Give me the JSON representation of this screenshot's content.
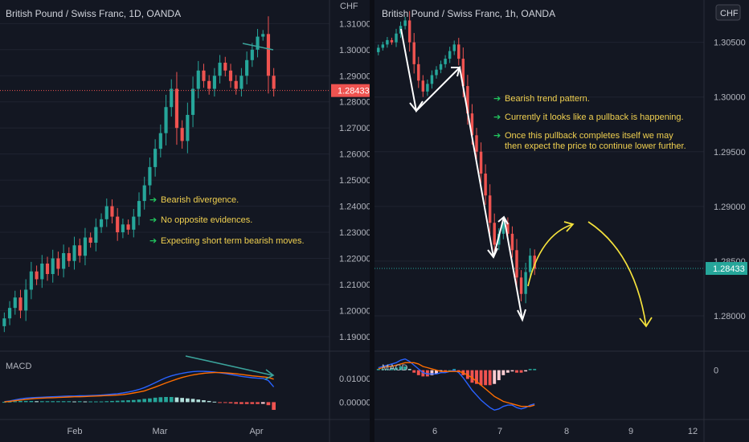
{
  "colors": {
    "background": "#131722",
    "up": "#26a69a",
    "down": "#ef5350",
    "price_line": "#ef5350",
    "price_tag_left": "#ef5350",
    "price_tag_right": "#26a69a",
    "macd_line": "#2962ff",
    "signal_line": "#ff6d00",
    "annotation_text": "#f0d050",
    "arrow_icon": "#22c55e",
    "projection": "#f5e23c"
  },
  "chart_data": [
    {
      "type": "candlestick",
      "title": "British Pound / Swiss Franc, 1D, OANDA",
      "currency": "CHF",
      "y_ticks": [
        "1.31000",
        "1.30000",
        "1.29000",
        "1.28000",
        "1.27000",
        "1.26000",
        "1.25000",
        "1.24000",
        "1.23000",
        "1.22000",
        "1.21000",
        "1.20000",
        "1.19000"
      ],
      "ylim": [
        1.1875,
        1.3175
      ],
      "x_ticks": [
        "Feb",
        "Mar",
        "Apr"
      ],
      "current_price": "1.28433",
      "current_value": 1.28433,
      "closes": [
        1.197,
        1.201,
        1.205,
        1.2,
        1.208,
        1.215,
        1.212,
        1.218,
        1.214,
        1.22,
        1.216,
        1.222,
        1.219,
        1.225,
        1.221,
        1.228,
        1.226,
        1.232,
        1.235,
        1.24,
        1.236,
        1.23,
        1.233,
        1.231,
        1.236,
        1.242,
        1.248,
        1.255,
        1.262,
        1.268,
        1.278,
        1.285,
        1.27,
        1.265,
        1.275,
        1.285,
        1.292,
        1.288,
        1.285,
        1.29,
        1.295,
        1.292,
        1.288,
        1.285,
        1.29,
        1.296,
        1.3,
        1.305,
        1.306,
        1.29,
        1.285
      ],
      "annotations": [
        "Bearish divergence.",
        "No opposite evidences.",
        "Expecting short term bearish moves."
      ],
      "macd": {
        "label": "MACD",
        "y_ticks": [
          "0.01000",
          "0.00000"
        ],
        "ylim": [
          -0.005,
          0.02
        ],
        "macd_line": [
          0.0002,
          0.0005,
          0.001,
          0.0014,
          0.0017,
          0.0019,
          0.002,
          0.0021,
          0.0022,
          0.0023,
          0.0024,
          0.0025,
          0.0026,
          0.0026,
          0.0027,
          0.0027,
          0.0028,
          0.0029,
          0.003,
          0.0032,
          0.0034,
          0.0036,
          0.0039,
          0.0043,
          0.0048,
          0.0054,
          0.0062,
          0.0072,
          0.0083,
          0.0094,
          0.0104,
          0.0112,
          0.0118,
          0.0123,
          0.0127,
          0.013,
          0.0131,
          0.0131,
          0.013,
          0.0128,
          0.0125,
          0.0122,
          0.0118,
          0.0114,
          0.011,
          0.0107,
          0.0104,
          0.0102,
          0.0101,
          0.0092,
          0.0065
        ],
        "signal_line": [
          0.0001,
          0.0003,
          0.0006,
          0.0009,
          0.0012,
          0.0014,
          0.0016,
          0.0017,
          0.0018,
          0.0019,
          0.002,
          0.0021,
          0.0022,
          0.0023,
          0.0023,
          0.0024,
          0.0025,
          0.0026,
          0.0027,
          0.0028,
          0.0029,
          0.003,
          0.0032,
          0.0035,
          0.0039,
          0.0043,
          0.0048,
          0.0056,
          0.0064,
          0.0073,
          0.0082,
          0.009,
          0.0098,
          0.0105,
          0.0111,
          0.0116,
          0.012,
          0.0123,
          0.0125,
          0.0126,
          0.0126,
          0.0125,
          0.0123,
          0.0121,
          0.0118,
          0.0115,
          0.0112,
          0.011,
          0.0108,
          0.0105,
          0.0098
        ],
        "histogram": [
          0.0001,
          0.0002,
          0.0004,
          0.0005,
          0.0005,
          0.0005,
          0.0004,
          0.0004,
          0.0004,
          0.0004,
          0.0004,
          0.0004,
          0.0004,
          0.0003,
          0.0004,
          0.0003,
          0.0003,
          0.0003,
          0.0003,
          0.0004,
          0.0005,
          0.0006,
          0.0007,
          0.0008,
          0.0009,
          0.0011,
          0.0014,
          0.0016,
          0.0019,
          0.0021,
          0.0022,
          0.0022,
          0.002,
          0.0018,
          0.0016,
          0.0014,
          0.0011,
          0.0008,
          0.0005,
          0.0002,
          -0.0001,
          -0.0003,
          -0.0005,
          -0.0007,
          -0.0008,
          -0.0008,
          -0.0008,
          -0.0008,
          -0.0007,
          -0.0013,
          -0.0033
        ]
      }
    },
    {
      "type": "candlestick",
      "title": "British Pound / Swiss Franc, 1h, OANDA",
      "currency": "CHF",
      "y_ticks": [
        "1.30500",
        "1.30000",
        "1.29500",
        "1.29000",
        "1.28500",
        "1.28000"
      ],
      "ylim": [
        1.2775,
        1.3085
      ],
      "x_ticks": [
        "6",
        "7",
        "8",
        "9",
        "12"
      ],
      "current_price": "1.28433",
      "current_value": 1.28433,
      "closes": [
        1.3045,
        1.3048,
        1.3052,
        1.305,
        1.3058,
        1.3065,
        1.307,
        1.305,
        1.303,
        1.3015,
        1.3005,
        1.3012,
        1.302,
        1.3025,
        1.303,
        1.3035,
        1.3042,
        1.3048,
        1.3035,
        1.301,
        1.2985,
        1.2965,
        1.295,
        1.293,
        1.291,
        1.2885,
        1.2865,
        1.2875,
        1.2885,
        1.2875,
        1.286,
        1.2835,
        1.282,
        1.284,
        1.2855,
        1.2843
      ],
      "annotations": [
        "Bearish trend pattern.",
        "Currently it looks like a pullback is happening.",
        "Once this pullback completes itself we may then expect the price to continue lower further."
      ],
      "macd": {
        "label": "MACD",
        "y_ticks": [
          "0"
        ],
        "ylim": [
          -0.0035,
          0.0012
        ],
        "macd_line": [
          0.0002,
          0.0003,
          0.0004,
          0.0005,
          0.0006,
          0.0008,
          0.0009,
          0.0007,
          0.0004,
          0.0001,
          -0.0002,
          -0.0003,
          -0.0003,
          -0.0003,
          -0.0002,
          -0.0002,
          -0.0001,
          0.0,
          -0.0002,
          -0.0006,
          -0.0011,
          -0.0016,
          -0.002,
          -0.0024,
          -0.0027,
          -0.003,
          -0.0032,
          -0.0031,
          -0.0029,
          -0.0028,
          -0.0028,
          -0.003,
          -0.0031,
          -0.003,
          -0.0028,
          -0.0027
        ],
        "signal_line": [
          0.0001,
          0.0002,
          0.0003,
          0.0003,
          0.0004,
          0.0005,
          0.0006,
          0.0006,
          0.0006,
          0.0005,
          0.0003,
          0.0002,
          0.0001,
          0.0,
          -0.0001,
          -0.0001,
          -0.0001,
          -0.0001,
          -0.0001,
          -0.0002,
          -0.0004,
          -0.0006,
          -0.0009,
          -0.0012,
          -0.0015,
          -0.0018,
          -0.0021,
          -0.0023,
          -0.0025,
          -0.0026,
          -0.0027,
          -0.0028,
          -0.0029,
          -0.0029,
          -0.0029,
          -0.0028
        ],
        "histogram": [
          0.0001,
          0.0001,
          0.0001,
          0.0002,
          0.0002,
          0.0003,
          0.0003,
          0.0001,
          -0.0002,
          -0.0004,
          -0.0005,
          -0.0005,
          -0.0004,
          -0.0003,
          -0.0001,
          -0.0001,
          0.0,
          0.0001,
          -0.0001,
          -0.0004,
          -0.0007,
          -0.001,
          -0.0011,
          -0.0012,
          -0.0012,
          -0.0012,
          -0.0011,
          -0.0008,
          -0.0004,
          -0.0002,
          -0.0001,
          -0.0002,
          -0.0002,
          -0.0001,
          0.0001,
          0.0001
        ]
      }
    }
  ]
}
